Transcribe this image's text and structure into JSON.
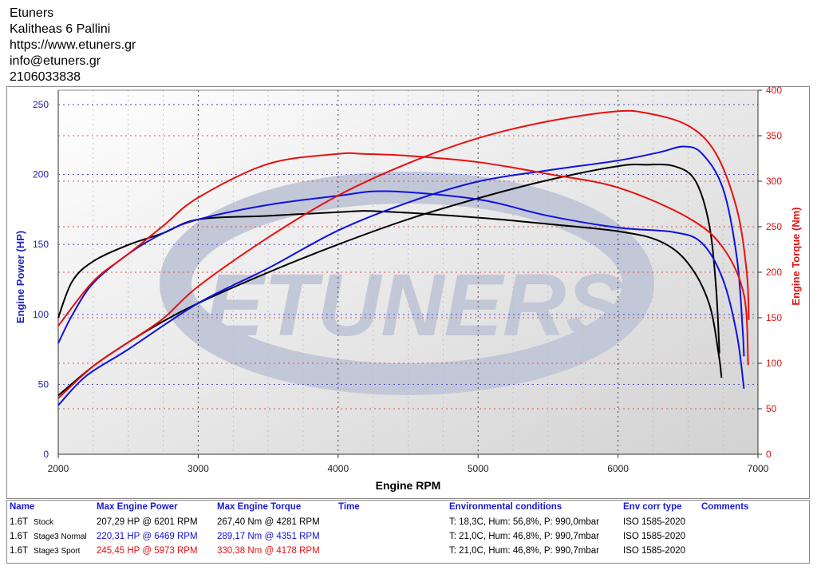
{
  "header": {
    "lines": [
      "Etuners",
      "Kalitheas 6 Pallini",
      "https://www.etuners.gr",
      "info@etuners.gr",
      "2106033838"
    ]
  },
  "watermark": "ETUNERS",
  "chart_data": {
    "type": "line",
    "xlabel": "Engine RPM",
    "ylabel": "Engine Power (HP)",
    "y2label": "Engine Torque (Nm)",
    "xlim": [
      2000,
      7000
    ],
    "ylim": [
      0,
      260
    ],
    "y2lim": [
      0,
      400
    ],
    "xticks": [
      2000,
      3000,
      4000,
      5000,
      6000,
      7000
    ],
    "yticks": [
      0,
      50,
      100,
      150,
      200,
      250
    ],
    "y2ticks": [
      0,
      50,
      100,
      150,
      200,
      250,
      300,
      350,
      400
    ],
    "grid": true,
    "colors": {
      "stock": "#000000",
      "normal": "#1010e0",
      "sport": "#e81010",
      "axis_left": "#2020c0",
      "axis_right": "#e01010"
    },
    "series": [
      {
        "name": "1.6T Stock power",
        "color": "#000000",
        "axis": "left",
        "x": [
          2000,
          2250,
          2500,
          2750,
          3000,
          3500,
          4000,
          4500,
          5000,
          5500,
          6000,
          6200,
          6400,
          6550,
          6650,
          6700,
          6725
        ],
        "y": [
          42,
          63,
          80,
          95,
          108,
          130,
          150,
          168,
          183,
          196,
          206,
          207,
          206,
          196,
          165,
          120,
          72
        ]
      },
      {
        "name": "1.6T Stock torque",
        "color": "#000000",
        "axis": "left2",
        "x": [
          2000,
          2100,
          2250,
          2500,
          2750,
          3000,
          3500,
          4000,
          4281,
          5000,
          5500,
          6000,
          6300,
          6500,
          6650,
          6720,
          6740
        ],
        "y": [
          150,
          190,
          212,
          230,
          243,
          258,
          262,
          266,
          267,
          260,
          253,
          245,
          234,
          210,
          166,
          109,
          84
        ]
      },
      {
        "name": "1.6T Stage3 Normal power",
        "color": "#1010e0",
        "axis": "left",
        "x": [
          2000,
          2200,
          2500,
          3000,
          3500,
          4000,
          4500,
          5000,
          5500,
          6000,
          6300,
          6469,
          6600,
          6750,
          6850,
          6890,
          6900
        ],
        "y": [
          35,
          56,
          75,
          108,
          133,
          160,
          180,
          195,
          203,
          210,
          216,
          220,
          215,
          190,
          140,
          90,
          70
        ]
      },
      {
        "name": "1.6T Stage3 Normal torque",
        "color": "#1010e0",
        "axis": "left2",
        "x": [
          2000,
          2100,
          2250,
          2500,
          2750,
          3000,
          3500,
          4000,
          4351,
          5000,
          5500,
          6000,
          6400,
          6600,
          6750,
          6850,
          6900
        ],
        "y": [
          122,
          153,
          188,
          220,
          243,
          258,
          274,
          284,
          289,
          280,
          262,
          249,
          244,
          232,
          192,
          131,
          72
        ]
      },
      {
        "name": "1.6T Stage3 Sport power",
        "color": "#e81010",
        "axis": "left",
        "x": [
          2000,
          2250,
          2500,
          2750,
          3000,
          3500,
          4000,
          4500,
          5000,
          5500,
          5973,
          6200,
          6500,
          6700,
          6850,
          6920,
          6935
        ],
        "y": [
          40,
          63,
          80,
          97,
          120,
          155,
          185,
          208,
          226,
          238,
          245,
          244,
          235,
          215,
          175,
          130,
          96
        ]
      },
      {
        "name": "1.6T Stage3 Sport torque",
        "color": "#e81010",
        "axis": "left2",
        "x": [
          2000,
          2250,
          2500,
          2750,
          3000,
          3500,
          4000,
          4178,
          4500,
          5000,
          5500,
          6000,
          6500,
          6750,
          6900,
          6930
        ],
        "y": [
          141,
          190,
          220,
          251,
          282,
          319,
          330,
          330,
          328,
          321,
          308,
          293,
          260,
          227,
          175,
          98
        ]
      }
    ]
  },
  "table": {
    "headers": [
      "Name",
      "Max Engine Power",
      "Max Engine Torque",
      "Time",
      "Environmental conditions",
      "Env corr type",
      "Comments"
    ],
    "rows": [
      {
        "name_a": "1.6T",
        "name_b": "Stock",
        "power": "207,29 HP @ 6201 RPM",
        "torque": "267,40 Nm @ 4281 RPM",
        "env": "T: 18,3C, Hum: 56,8%, P: 990,0mbar",
        "corr": "ISO 1585-2020",
        "color": "#000000"
      },
      {
        "name_a": "1.6T",
        "name_b": "Stage3 Normal",
        "power": "220,31 HP @ 6469 RPM",
        "torque": "289,17 Nm @ 4351 RPM",
        "env": "T: 21,0C, Hum: 46,8%, P: 990,7mbar",
        "corr": "ISO 1585-2020",
        "color": "#1010e0"
      },
      {
        "name_a": "1.6T",
        "name_b": "Stage3 Sport",
        "power": "245,45 HP @ 5973 RPM",
        "torque": "330,38 Nm @ 4178 RPM",
        "env": "T: 21,0C, Hum: 46,8%, P: 990,7mbar",
        "corr": "ISO 1585-2020",
        "color": "#e81010"
      }
    ]
  }
}
